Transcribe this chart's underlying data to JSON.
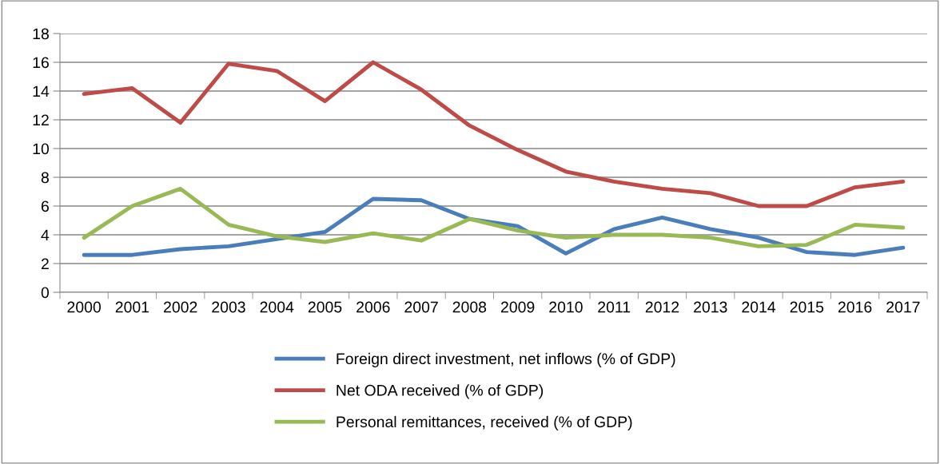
{
  "chart_data": {
    "type": "line",
    "categories": [
      "2000",
      "2001",
      "2002",
      "2003",
      "2004",
      "2005",
      "2006",
      "2007",
      "2008",
      "2009",
      "2010",
      "2011",
      "2012",
      "2013",
      "2014",
      "2015",
      "2016",
      "2017"
    ],
    "series": [
      {
        "name": "Foreign direct investment, net inflows (% of GDP)",
        "color": "#4a7ebb",
        "values": [
          2.6,
          2.6,
          3.0,
          3.2,
          3.7,
          4.2,
          6.5,
          6.4,
          5.1,
          4.6,
          2.7,
          4.4,
          5.2,
          4.4,
          3.8,
          2.8,
          2.6,
          3.1
        ]
      },
      {
        "name": "Net ODA received (% of GDP)",
        "color": "#be4b48",
        "values": [
          13.8,
          14.2,
          11.8,
          15.9,
          15.4,
          13.3,
          16.0,
          14.1,
          11.6,
          9.9,
          8.4,
          7.7,
          7.2,
          6.9,
          6.0,
          6.0,
          7.3,
          7.7
        ]
      },
      {
        "name": "Personal remittances, received (% of GDP)",
        "color": "#98b954",
        "values": [
          3.8,
          6.0,
          7.2,
          4.7,
          3.9,
          3.5,
          4.1,
          3.6,
          5.1,
          4.3,
          3.8,
          4.0,
          4.0,
          3.8,
          3.2,
          3.3,
          4.7,
          4.5
        ]
      }
    ],
    "ylim": [
      0,
      18
    ],
    "yticks": [
      0,
      2,
      4,
      6,
      8,
      10,
      12,
      14,
      16,
      18
    ],
    "grid": "y",
    "legend": "bottom",
    "marker": "none",
    "line_style": "solid"
  }
}
